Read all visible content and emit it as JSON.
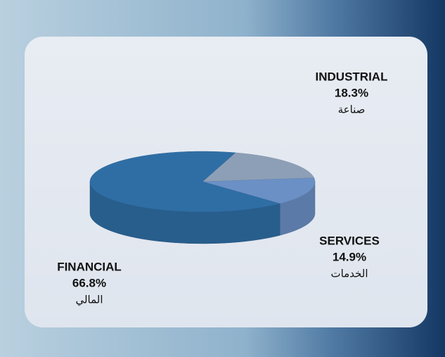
{
  "chart_data": {
    "type": "pie",
    "categories": [
      "INDUSTRIAL",
      "SERVICES",
      "FINANCIAL"
    ],
    "subcategories": [
      "صناعة",
      "الخدمات",
      "المالي"
    ],
    "values": [
      18.3,
      14.9,
      66.8
    ],
    "value_labels": [
      "18.3%",
      "14.9%",
      "66.8%"
    ],
    "colors": [
      "#8d9fb6",
      "#6b90c6",
      "#2f6ea5"
    ]
  }
}
